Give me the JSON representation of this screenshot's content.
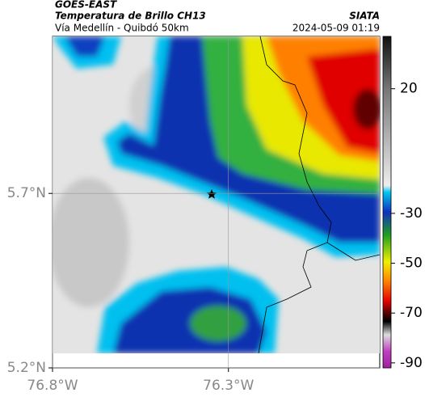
{
  "header": {
    "title": "GOES-EAST",
    "subtitle": "Temperatura de Brillo CH13",
    "caption": "Vía Medellín - Quibdó 50km",
    "source": "SIATA",
    "timestamp": "2024-05-09 01:19"
  },
  "map": {
    "xlim": [
      -76.8,
      -75.87
    ],
    "ylim": [
      5.2,
      6.15
    ],
    "xticks": [
      {
        "value": -76.8,
        "label": "76.8°W"
      },
      {
        "value": -76.3,
        "label": "76.3°W"
      }
    ],
    "yticks": [
      {
        "value": 5.7,
        "label": "5.7°N"
      },
      {
        "value": 5.2,
        "label": "5.2°N"
      }
    ]
  },
  "colorbar": {
    "lim": [
      -92,
      41
    ],
    "ticks": [
      20,
      -30,
      -50,
      -70,
      -90
    ]
  }
}
